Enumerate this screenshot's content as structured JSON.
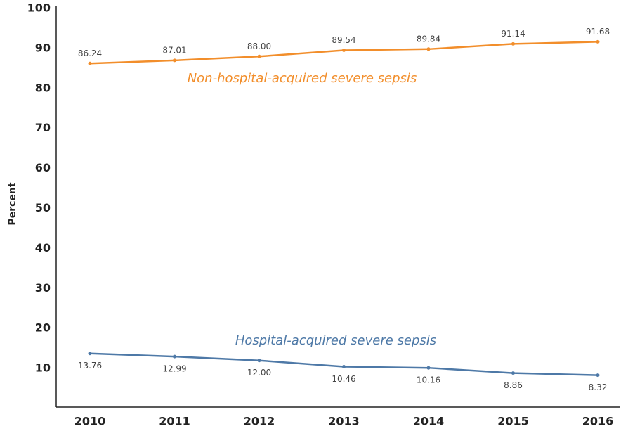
{
  "chart_data": {
    "type": "line",
    "ylabel": "Percent",
    "categories": [
      "2010",
      "2011",
      "2012",
      "2013",
      "2014",
      "2015",
      "2016"
    ],
    "series": [
      {
        "name": "Non-hospital-acquired severe sepsis",
        "color": "#f28e2b",
        "values": [
          86.24,
          87.01,
          88.0,
          89.54,
          89.84,
          91.14,
          91.68
        ],
        "value_labels": [
          "86.24",
          "87.01",
          "88.00",
          "89.54",
          "89.84",
          "91.14",
          "91.68"
        ]
      },
      {
        "name": "Hospital-acquired severe sepsis",
        "color": "#4e79a7",
        "values": [
          13.76,
          12.99,
          12.0,
          10.46,
          10.16,
          8.86,
          8.32
        ],
        "value_labels": [
          "13.76",
          "12.99",
          "12.00",
          "10.46",
          "10.16",
          "8.86",
          "8.32"
        ]
      }
    ],
    "ylim": [
      0,
      100
    ],
    "yticks": [
      10,
      20,
      30,
      40,
      50,
      60,
      70,
      80,
      90,
      100
    ]
  }
}
